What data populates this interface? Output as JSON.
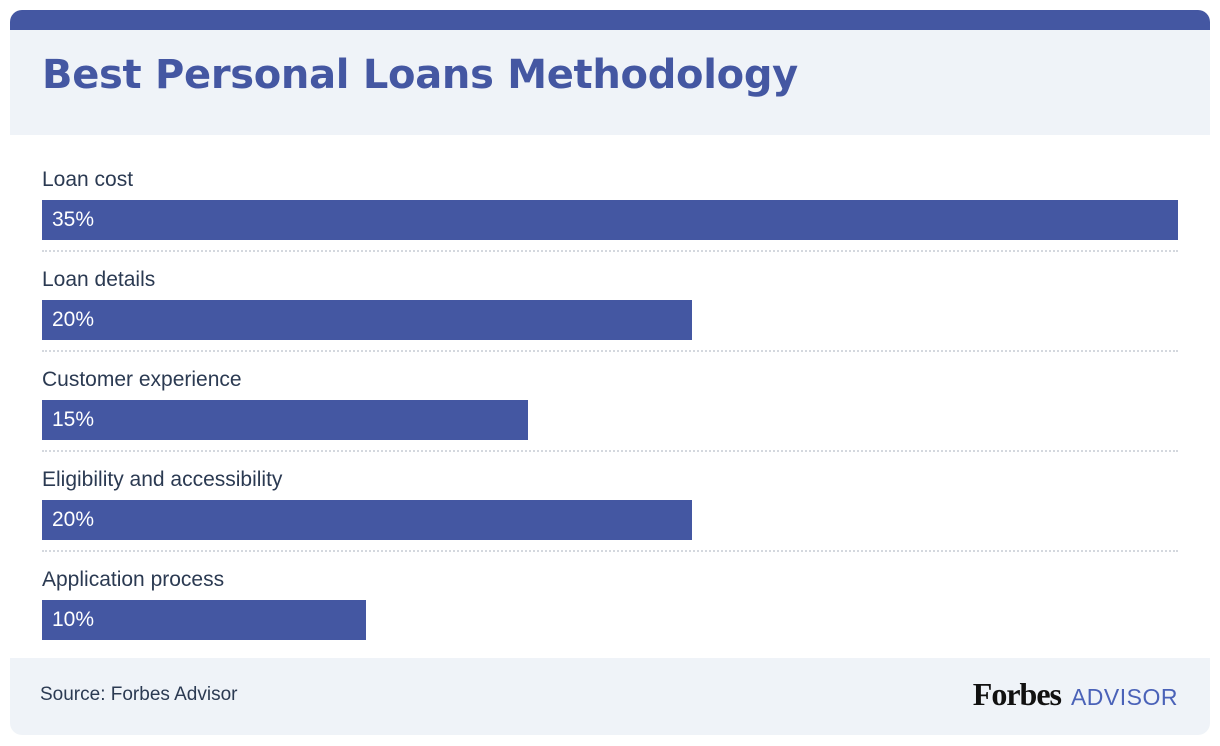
{
  "header": {
    "title": "Best Personal Loans Methodology"
  },
  "chart_data": {
    "type": "bar",
    "orientation": "horizontal",
    "title": "Best Personal Loans Methodology",
    "categories": [
      "Loan cost",
      "Loan details",
      "Customer experience",
      "Eligibility and accessibility",
      "Application process"
    ],
    "values": [
      35,
      20,
      15,
      20,
      10
    ],
    "value_labels": [
      "35%",
      "20%",
      "15%",
      "20%",
      "10%"
    ],
    "bar_width_pct": [
      100,
      57.2,
      42.8,
      57.2,
      28.5
    ],
    "unit": "%",
    "xlabel": "",
    "ylabel": "",
    "grid": false,
    "legend": "none",
    "bar_color": "#4457a2"
  },
  "footer": {
    "source": "Source: Forbes Advisor",
    "logo_brand": "Forbes",
    "logo_sub": "ADVISOR"
  },
  "colors": {
    "accent": "#4457a2",
    "header_bg": "#eff3f8",
    "text": "#2b3a52"
  }
}
